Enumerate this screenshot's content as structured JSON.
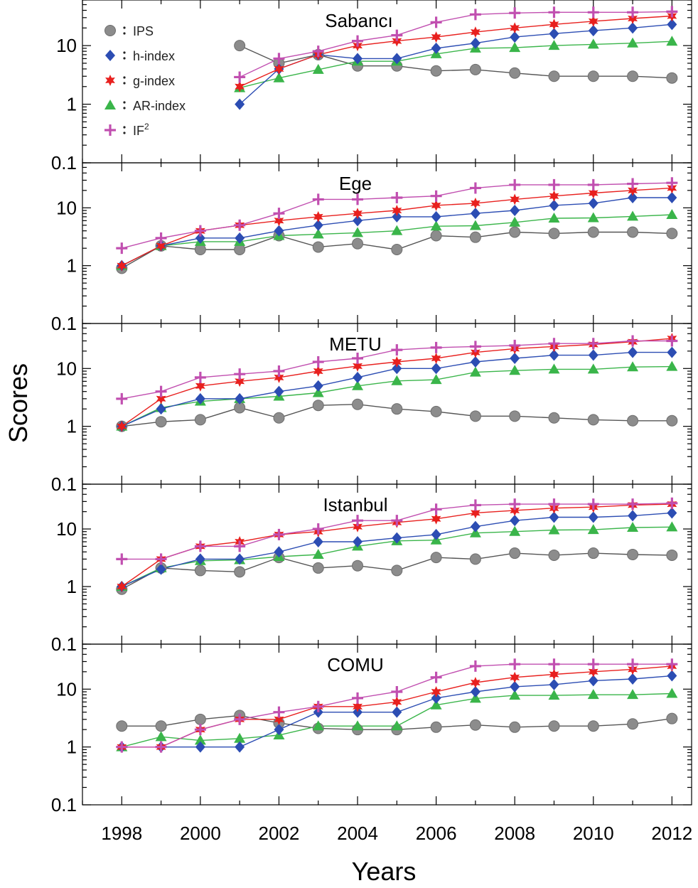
{
  "chart_data": {
    "type": "line",
    "ylabel": "Scores",
    "xlabel": "Years",
    "y_scale": "log",
    "ylim": [
      0.1,
      60
    ],
    "xlim": [
      1997,
      2012.5
    ],
    "y_ticks": [
      "0.1",
      "1",
      "10"
    ],
    "x_ticks": [
      "1998",
      "2000",
      "2002",
      "2004",
      "2006",
      "2008",
      "2010",
      "2012"
    ],
    "legend": {
      "placement": "top-left of first panel",
      "entries": [
        {
          "key": "ips",
          "label": "IPS",
          "marker": "circle",
          "color": "#8c8c8c"
        },
        {
          "key": "h",
          "label": "h-index",
          "marker": "diamond",
          "color": "#2c4db3"
        },
        {
          "key": "g",
          "label": "g-index",
          "marker": "star",
          "color": "#e8201e"
        },
        {
          "key": "ar",
          "label": "AR-index",
          "marker": "triangle",
          "color": "#3ab54a"
        },
        {
          "key": "if2",
          "label": "IF",
          "label_sup": "2",
          "marker": "plus",
          "color": "#c14fb0"
        }
      ]
    },
    "line_colors": {
      "ips": "#555555",
      "h": "#2c4db3",
      "g": "#e8201e",
      "ar": "#3ab54a",
      "if2": "#c14fb0"
    },
    "panels": [
      {
        "title": "Sabancı",
        "x": [
          2001,
          2002,
          2003,
          2004,
          2005,
          2006,
          2007,
          2008,
          2009,
          2010,
          2011,
          2012
        ],
        "series": {
          "ips": [
            10,
            5,
            7,
            4.5,
            4.5,
            3.7,
            3.9,
            3.4,
            3.0,
            3.0,
            3.0,
            2.8
          ],
          "h": [
            1,
            4,
            7,
            6,
            6,
            9,
            11,
            14,
            16,
            18,
            20,
            23
          ],
          "g": [
            2,
            4,
            7,
            10,
            12,
            14,
            17,
            20,
            23,
            26,
            29,
            32
          ],
          "ar": [
            1.9,
            2.8,
            3.9,
            5.4,
            5.4,
            7.2,
            9,
            9.2,
            10,
            10.5,
            11,
            11.8
          ],
          "if2": [
            2.9,
            6,
            8,
            12,
            15,
            25,
            34,
            36,
            37,
            37,
            37,
            38
          ]
        }
      },
      {
        "title": "Ege",
        "x": [
          1998,
          1999,
          2000,
          2001,
          2002,
          2003,
          2004,
          2005,
          2006,
          2007,
          2008,
          2009,
          2010,
          2011,
          2012
        ],
        "series": {
          "ips": [
            0.9,
            2.2,
            1.9,
            1.9,
            3.3,
            2.1,
            2.4,
            1.9,
            3.3,
            3.1,
            3.8,
            3.6,
            3.8,
            3.8,
            3.6
          ],
          "h": [
            1,
            2.2,
            3,
            3,
            4,
            5,
            6,
            7,
            7,
            8,
            9,
            11,
            12,
            15,
            15
          ],
          "g": [
            1,
            2.2,
            4,
            5,
            6,
            7,
            8,
            9,
            11,
            12,
            14,
            16,
            18,
            20,
            22
          ],
          "ar": [
            1,
            2.2,
            2.6,
            2.6,
            3.3,
            3.5,
            3.7,
            4.0,
            4.8,
            4.9,
            5.6,
            6.6,
            6.7,
            7.1,
            7.6
          ],
          "if2": [
            2,
            3,
            4,
            5,
            8,
            14,
            14,
            15,
            16,
            22,
            25,
            25,
            25,
            26,
            27
          ]
        }
      },
      {
        "title": "METU",
        "x": [
          1998,
          1999,
          2000,
          2001,
          2002,
          2003,
          2004,
          2005,
          2006,
          2007,
          2008,
          2009,
          2010,
          2011,
          2012
        ],
        "series": {
          "ips": [
            1.0,
            1.2,
            1.3,
            2.1,
            1.4,
            2.3,
            2.4,
            2.0,
            1.8,
            1.5,
            1.5,
            1.4,
            1.3,
            1.25,
            1.25
          ],
          "h": [
            1,
            2,
            3,
            3,
            4,
            5,
            7,
            10,
            10,
            13,
            15,
            17,
            17,
            19,
            19
          ],
          "g": [
            1,
            3,
            5,
            6,
            7,
            9,
            11,
            13,
            15,
            19,
            22,
            24,
            26,
            29,
            33
          ],
          "ar": [
            1,
            2.1,
            2.7,
            3.0,
            3.3,
            3.8,
            5.0,
            6.1,
            6.4,
            8.6,
            9.2,
            9.7,
            9.7,
            10.6,
            10.8
          ],
          "if2": [
            3,
            4,
            7,
            8,
            9,
            13,
            15,
            21,
            23,
            24,
            25,
            27,
            27,
            30,
            30
          ]
        }
      },
      {
        "title": "Istanbul",
        "x": [
          1998,
          1999,
          2000,
          2001,
          2002,
          2003,
          2004,
          2005,
          2006,
          2007,
          2008,
          2009,
          2010,
          2011,
          2012
        ],
        "series": {
          "ips": [
            0.9,
            2.1,
            1.9,
            1.8,
            3.2,
            2.1,
            2.3,
            1.9,
            3.2,
            3.0,
            3.8,
            3.5,
            3.8,
            3.6,
            3.5
          ],
          "h": [
            1,
            2,
            3,
            3,
            4,
            6,
            6,
            7,
            8,
            11,
            14,
            16,
            16,
            17,
            19
          ],
          "g": [
            1,
            3,
            5,
            6,
            8,
            9,
            11,
            13,
            15,
            19,
            21,
            23,
            24,
            26,
            27
          ],
          "ar": [
            1,
            2.1,
            2.8,
            2.9,
            3.3,
            3.6,
            5.0,
            6.2,
            6.4,
            8.5,
            9.0,
            9.6,
            9.7,
            10.6,
            10.8
          ],
          "if2": [
            3,
            3,
            5,
            5,
            8,
            10,
            14,
            14,
            22,
            26,
            27,
            27,
            27,
            27,
            28
          ]
        }
      },
      {
        "title": "COMU",
        "x": [
          1998,
          1999,
          2000,
          2001,
          2002,
          2003,
          2004,
          2005,
          2006,
          2007,
          2008,
          2009,
          2010,
          2011,
          2012
        ],
        "series": {
          "ips": [
            2.3,
            2.3,
            3.0,
            3.5,
            2.6,
            2.1,
            2.0,
            2.0,
            2.2,
            2.4,
            2.2,
            2.3,
            2.3,
            2.5,
            3.1
          ],
          "h": [
            1,
            1,
            1,
            1,
            2,
            4,
            4,
            4,
            7,
            9,
            11,
            12,
            14,
            15,
            17
          ],
          "g": [
            1,
            1,
            2,
            3,
            3,
            5,
            5,
            6,
            9,
            13,
            16,
            18,
            20,
            22,
            25
          ],
          "ar": [
            1,
            1.5,
            1.3,
            1.4,
            1.6,
            2.3,
            2.3,
            2.3,
            5.3,
            6.9,
            7.8,
            7.8,
            8.0,
            8.0,
            8.4
          ],
          "if2": [
            1,
            1,
            2,
            3,
            4,
            5,
            7,
            9,
            16,
            25,
            27,
            27,
            27,
            27,
            27
          ]
        }
      }
    ]
  }
}
